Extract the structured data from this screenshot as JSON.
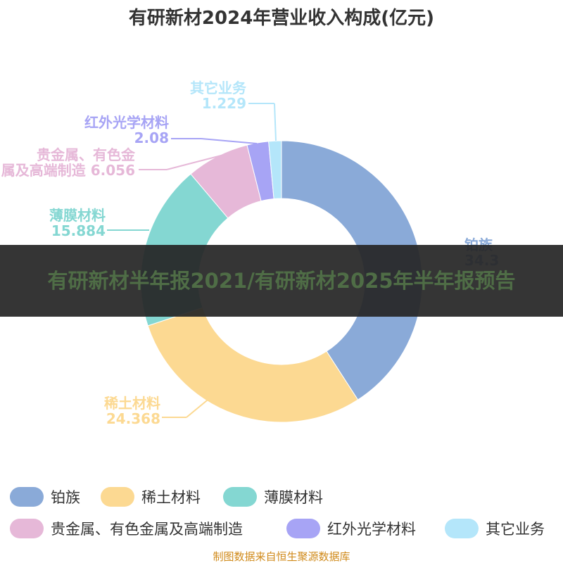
{
  "banner": {
    "text": "有研新材半年报2021/有研新材2025年半年报预告"
  },
  "source": "制图数据来自恒生聚源数据库",
  "chart_data": {
    "type": "pie",
    "donut": true,
    "title": "有研新材2024年营业收入构成(亿元)",
    "slices": [
      {
        "name": "铂族",
        "value": 34.3,
        "color": "#8aaad8",
        "label_lines": [
          "铂族",
          "34.3"
        ]
      },
      {
        "name": "稀土材料",
        "value": 24.368,
        "color": "#fcd992",
        "label_lines": [
          "稀土材料",
          "24.368"
        ]
      },
      {
        "name": "薄膜材料",
        "value": 15.884,
        "color": "#84d7d2",
        "label_lines": [
          "薄膜材料",
          "15.884"
        ]
      },
      {
        "name": "贵金属、有色金属及高端制造",
        "value": 6.056,
        "color": "#e6b8d8",
        "label_lines": [
          "贵金属、有色金",
          "属及高端制造 6.056"
        ]
      },
      {
        "name": "红外光学材料",
        "value": 2.08,
        "color": "#a7a4f5",
        "label_lines": [
          "红外光学材料",
          "2.08"
        ]
      },
      {
        "name": "其它业务",
        "value": 1.229,
        "color": "#b4e6fa",
        "label_lines": [
          "其它业务",
          "1.229"
        ]
      }
    ],
    "legend_position": "bottom"
  }
}
